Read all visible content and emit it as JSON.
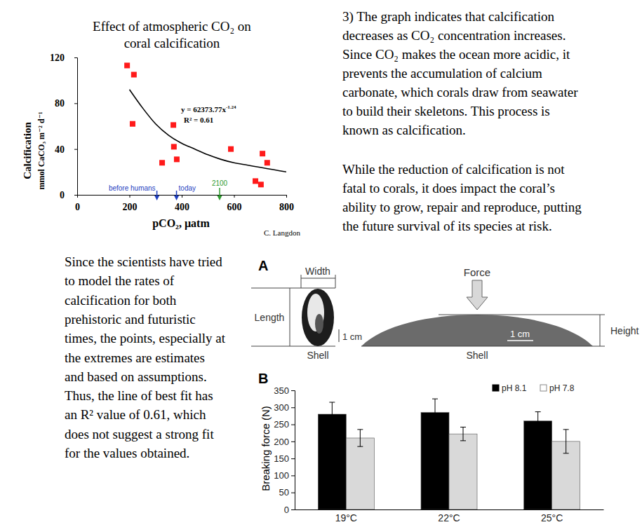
{
  "chart_data": [
    {
      "type": "scatter",
      "title": [
        "Effect of atmospheric CO₂ on",
        "coral calcification"
      ],
      "x_label": "pCO₂, µatm",
      "y_label": [
        "Calcification",
        "mmol CaCO₃ m⁻² d⁻¹"
      ],
      "xlim": [
        0,
        800
      ],
      "xticks": [
        0,
        200,
        400,
        600,
        800
      ],
      "ylim": [
        0,
        120
      ],
      "yticks": [
        0,
        40,
        80,
        120
      ],
      "series": [
        {
          "type": "scatter",
          "marker": "square",
          "color": "#ff1a1a",
          "x": [
            191,
            217,
            212,
            325,
            368,
            370,
            381,
            588,
            682,
            703,
            709,
            727
          ],
          "values": [
            113,
            105,
            62,
            28,
            61,
            42,
            31,
            40,
            12,
            9,
            36,
            28
          ]
        },
        {
          "type": "line",
          "line_style": "solid",
          "color": "#000000",
          "x": [
            200,
            250,
            300,
            350,
            400,
            450,
            500,
            550,
            600,
            650,
            700,
            750,
            800
          ],
          "values": [
            92,
            76,
            62,
            52,
            45,
            40,
            35,
            31,
            28,
            26,
            24,
            22,
            20
          ]
        }
      ],
      "annotations": [
        {
          "text": "y = 62373.77x",
          "superscript": "-1.24"
        },
        {
          "text": "R² = 0.61"
        },
        {
          "text": "C. Langdon"
        }
      ],
      "period_markers": [
        {
          "text": "before humans",
          "x": 305,
          "color": "#1f3fbf"
        },
        {
          "text": "today",
          "x": 380,
          "color": "#1f3fbf"
        },
        {
          "text": "2100",
          "x": 545,
          "color": "#2e9a2e"
        }
      ]
    },
    {
      "type": "bar",
      "panel_label": "B",
      "y_label": "Breaking force (N)",
      "categories": [
        "19°C",
        "22°C",
        "25°C"
      ],
      "ylim": [
        0,
        350
      ],
      "yticks": [
        0,
        50,
        100,
        150,
        200,
        250,
        300,
        350
      ],
      "legend": "upper right",
      "series": [
        {
          "name": "pH 8.1",
          "color": "#000000",
          "values": [
            280,
            285,
            260
          ],
          "errors": [
            35,
            40,
            27
          ]
        },
        {
          "name": "pH 7.8",
          "color": "#d9d9d9",
          "values": [
            210,
            222,
            200
          ],
          "errors": [
            25,
            20,
            35
          ]
        }
      ]
    }
  ],
  "paragraphs": [
    [
      "3) The graph indicates that calcification",
      "decreases as CO₂ concentration increases.",
      "Since CO₂ makes the ocean more acidic, it",
      "prevents the accumulation of calcium",
      "carbonate, which corals draw from seawater",
      "to build their skeletons. This process is",
      "known as calcification."
    ],
    [
      "While the reduction of calcification is not",
      "fatal to corals, it does impact the coral’s",
      "ability to grow, repair and reproduce, putting",
      "the future survival of its species at risk."
    ],
    [
      "Since the scientists have tried",
      "to model the rates of",
      "calcification for both",
      "prehistoric and futuristic",
      "times, the points, especially at",
      "the extremes are estimates",
      "and based on assumptions.",
      "Thus, the line of best fit has",
      "an R² value of 0.61, which",
      "does not suggest a strong fit",
      "for the values obtained."
    ]
  ],
  "diagram": {
    "panel_label": "A",
    "width": "Width",
    "length": "Length",
    "scale": "1 cm",
    "shell": "Shell",
    "force": "Force",
    "height": "Height",
    "scale_right": "1 cm",
    "shell_right": "Shell"
  }
}
